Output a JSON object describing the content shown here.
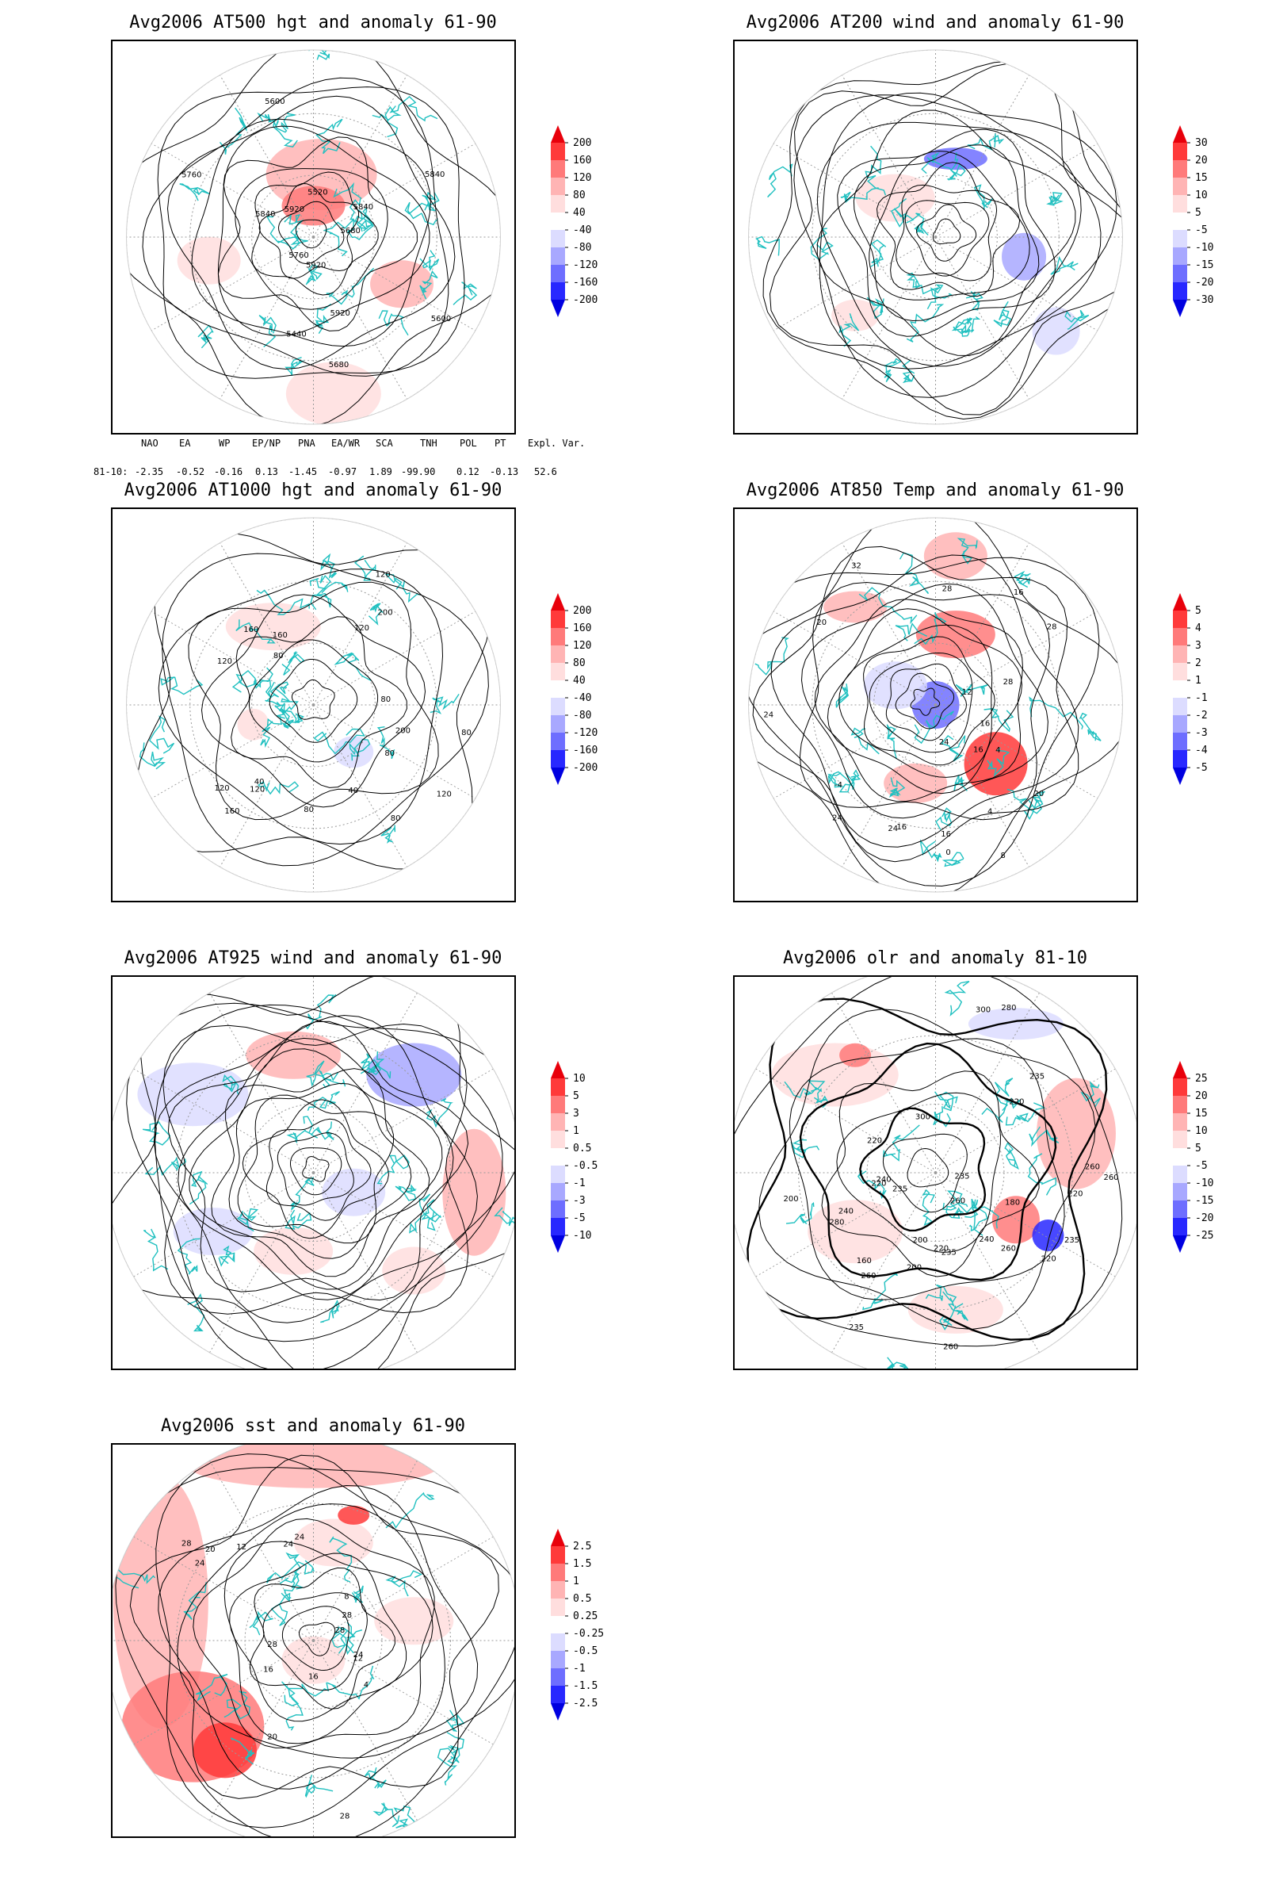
{
  "panels": [
    {
      "id": "p500",
      "title": "Avg2006 AT500 hgt and anomaly 61-90",
      "contour_labels": [
        "5840",
        "5760",
        "5680",
        "5600",
        "5920",
        "5920",
        "5520",
        "5440",
        "5600",
        "5680",
        "5760",
        "5840",
        "5840",
        "5920"
      ],
      "colorbar": {
        "levels": [
          "200",
          "160",
          "120",
          "80",
          "40",
          "-40",
          "-80",
          "-120",
          "-160",
          "-200"
        ],
        "colors": [
          "#e8000b",
          "#ff3a3a",
          "#ff7a7a",
          "#ffb4b4",
          "#ffdede",
          "#ffffff",
          "#dcdcff",
          "#a8a8ff",
          "#6e6eff",
          "#2828ff",
          "#0000e0"
        ]
      }
    },
    {
      "id": "p200",
      "title": "Avg2006 AT200 wind and anomaly 61-90",
      "contour_labels": [],
      "colorbar": {
        "levels": [
          "30",
          "20",
          "15",
          "10",
          "5",
          "-5",
          "-10",
          "-15",
          "-20",
          "-30"
        ],
        "colors": [
          "#e8000b",
          "#ff3a3a",
          "#ff7a7a",
          "#ffb4b4",
          "#ffdede",
          "#ffffff",
          "#dcdcff",
          "#a8a8ff",
          "#6e6eff",
          "#2828ff",
          "#0000e0"
        ]
      }
    },
    {
      "id": "p1000",
      "title": "Avg2006 AT1000 hgt and anomaly 61-90",
      "contour_labels": [
        "120",
        "200",
        "160",
        "160",
        "80",
        "120",
        "40",
        "80",
        "120",
        "80",
        "160",
        "200",
        "120",
        "80",
        "40",
        "80",
        "120",
        "120",
        "80"
      ],
      "colorbar": {
        "levels": [
          "200",
          "160",
          "120",
          "80",
          "40",
          "-40",
          "-80",
          "-120",
          "-160",
          "-200"
        ],
        "colors": [
          "#e8000b",
          "#ff3a3a",
          "#ff7a7a",
          "#ffb4b4",
          "#ffdede",
          "#ffffff",
          "#dcdcff",
          "#a8a8ff",
          "#6e6eff",
          "#2828ff",
          "#0000e0"
        ]
      }
    },
    {
      "id": "p850",
      "title": "Avg2006 AT850 Temp and anomaly 61-90",
      "contour_labels": [
        "16",
        "12",
        "16",
        "8",
        "20",
        "24",
        "28",
        "24",
        "4",
        "-4",
        "4",
        "0",
        "28",
        "28",
        "32",
        "16",
        "24",
        "20",
        "24",
        "16",
        "16"
      ],
      "colorbar": {
        "levels": [
          "5",
          "4",
          "3",
          "2",
          "1",
          "-1",
          "-2",
          "-3",
          "-4",
          "-5"
        ],
        "colors": [
          "#e8000b",
          "#ff3a3a",
          "#ff7a7a",
          "#ffb4b4",
          "#ffdede",
          "#ffffff",
          "#dcdcff",
          "#a8a8ff",
          "#6e6eff",
          "#2828ff",
          "#0000e0"
        ]
      }
    },
    {
      "id": "p925",
      "title": "Avg2006 AT925 wind and anomaly 61-90",
      "contour_labels": [],
      "colorbar": {
        "levels": [
          "10",
          "5",
          "3",
          "1",
          "0.5",
          "-0.5",
          "-1",
          "-3",
          "-5",
          "-10"
        ],
        "colors": [
          "#e8000b",
          "#ff3a3a",
          "#ff7a7a",
          "#ffb4b4",
          "#ffdede",
          "#ffffff",
          "#dcdcff",
          "#a8a8ff",
          "#6e6eff",
          "#2828ff",
          "#0000e0"
        ]
      }
    },
    {
      "id": "polr",
      "title": "Avg2006 olr and anomaly 81-10",
      "contour_labels": [
        "235",
        "220",
        "200",
        "260",
        "240",
        "235",
        "220",
        "260",
        "280",
        "300",
        "260",
        "235",
        "220",
        "240",
        "260",
        "235",
        "200",
        "180",
        "160",
        "220",
        "235",
        "260",
        "280",
        "300",
        "235",
        "220",
        "260",
        "240",
        "200",
        "220"
      ],
      "colorbar": {
        "levels": [
          "25",
          "20",
          "15",
          "10",
          "5",
          "-5",
          "-10",
          "-15",
          "-20",
          "-25"
        ],
        "colors": [
          "#e8000b",
          "#ff3a3a",
          "#ff7a7a",
          "#ffb4b4",
          "#ffdede",
          "#ffffff",
          "#dcdcff",
          "#a8a8ff",
          "#6e6eff",
          "#2828ff",
          "#0000e0"
        ]
      }
    },
    {
      "id": "psst",
      "title": "Avg2006 sst and anomaly 61-90",
      "contour_labels": [
        "28",
        "24",
        "24",
        "20",
        "16",
        "12",
        "28",
        "28",
        "24",
        "20",
        "16",
        "12",
        "8",
        "4",
        "28",
        "24",
        "28"
      ],
      "colorbar": {
        "levels": [
          "2.5",
          "1.5",
          "1",
          "0.5",
          "0.25",
          "-0.25",
          "-0.5",
          "-1",
          "-1.5",
          "-2.5"
        ],
        "colors": [
          "#e8000b",
          "#ff3a3a",
          "#ff7a7a",
          "#ffb4b4",
          "#ffdede",
          "#ffffff",
          "#dcdcff",
          "#a8a8ff",
          "#6e6eff",
          "#2828ff",
          "#0000e0"
        ]
      }
    }
  ],
  "indices": {
    "headers": [
      "NAO",
      "EA",
      "WP",
      "EP/NP",
      "PNA",
      "EA/WR",
      "SCA",
      "TNH",
      "POL",
      "PT",
      "Expl. Var."
    ],
    "row_label": "81-10:",
    "values": [
      "-2.35",
      "-0.52",
      "-0.16",
      "0.13",
      "-1.45",
      "-0.97",
      "1.89",
      "-99.90",
      "0.12",
      "-0.13",
      "52.6"
    ]
  },
  "styles": {
    "coast": "#20c0c0",
    "contour": "#000000",
    "grid": "#9a9a9a"
  }
}
